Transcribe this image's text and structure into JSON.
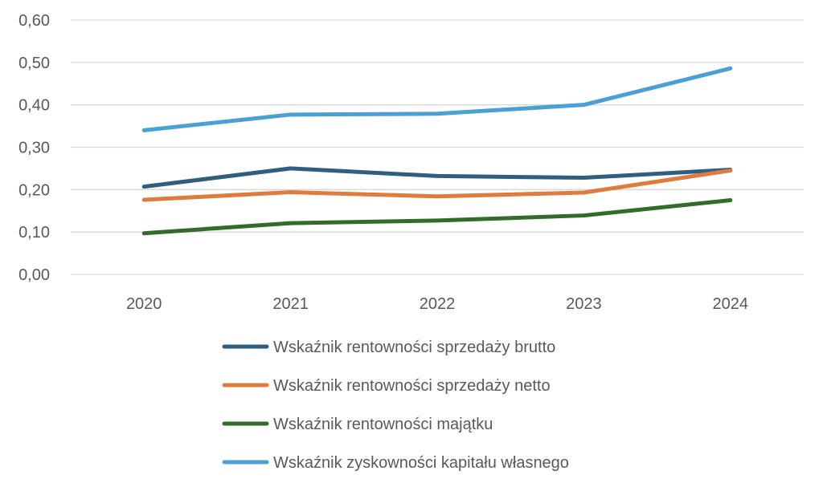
{
  "chart_data": {
    "type": "line",
    "title": "",
    "xlabel": "",
    "ylabel": "",
    "categories": [
      "2020",
      "2021",
      "2022",
      "2023",
      "2024"
    ],
    "ylim": [
      0,
      0.6
    ],
    "yticks": [
      "0,00",
      "0,10",
      "0,20",
      "0,30",
      "0,40",
      "0,50",
      "0,60"
    ],
    "ytick_values": [
      0,
      0.1,
      0.2,
      0.3,
      0.4,
      0.5,
      0.6
    ],
    "grid": true,
    "legend_position": "bottom",
    "series": [
      {
        "name": "Wskaźnik rentowności sprzedaży brutto",
        "color": "#2E5F80",
        "values": [
          0.207,
          0.25,
          0.232,
          0.228,
          0.247
        ]
      },
      {
        "name": "Wskaźnik rentowności sprzedaży netto",
        "color": "#E07B3F",
        "values": [
          0.176,
          0.194,
          0.184,
          0.193,
          0.245
        ]
      },
      {
        "name": "Wskaźnik rentowności majątku",
        "color": "#336B2B",
        "values": [
          0.097,
          0.121,
          0.127,
          0.139,
          0.175
        ]
      },
      {
        "name": "Wskaźnik zyskowności kapitału własnego",
        "color": "#4A9FD4",
        "values": [
          0.34,
          0.377,
          0.379,
          0.4,
          0.486
        ]
      }
    ]
  }
}
